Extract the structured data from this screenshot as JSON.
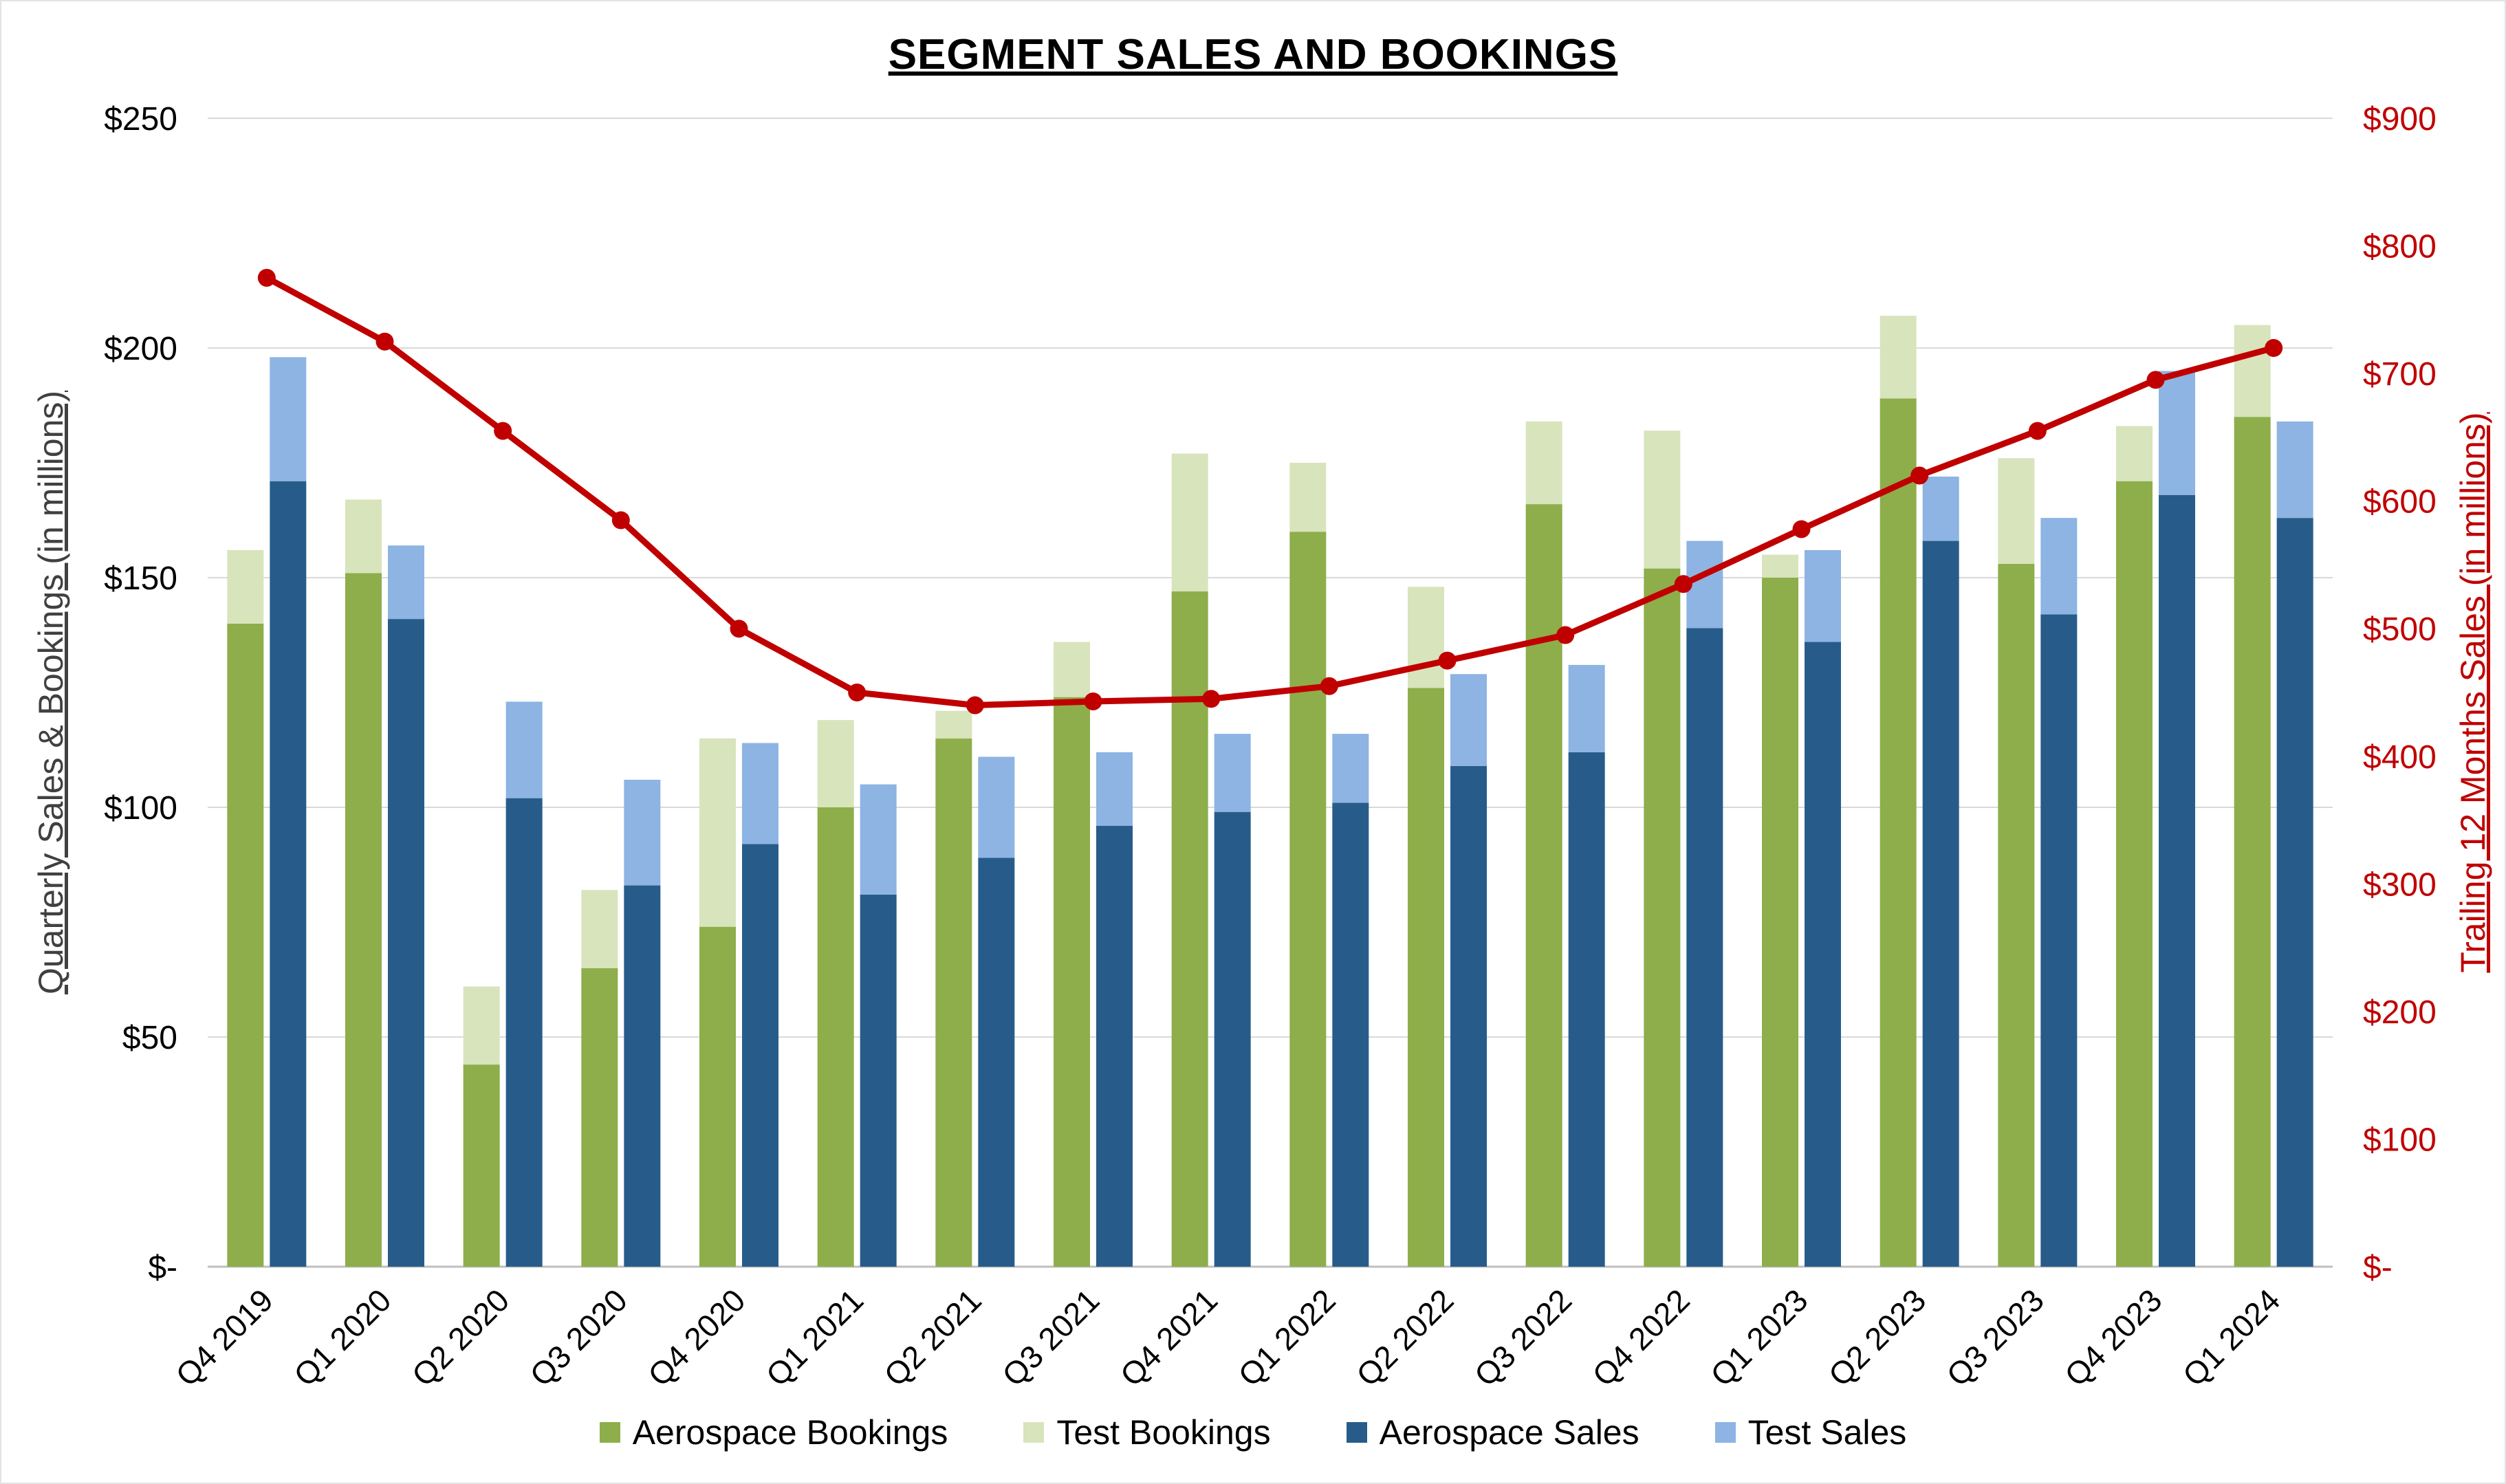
{
  "chart_data": {
    "type": "bar",
    "title": "SEGMENT SALES AND BOOKINGS",
    "categories": [
      "Q4 2019",
      "Q1 2020",
      "Q2 2020",
      "Q3 2020",
      "Q4 2020",
      "Q1 2021",
      "Q2 2021",
      "Q3 2021",
      "Q4 2021",
      "Q1 2022",
      "Q2 2022",
      "Q3 2022",
      "Q4 2022",
      "Q1 2023",
      "Q2 2023",
      "Q3 2023",
      "Q4 2023",
      "Q1 2024"
    ],
    "series": [
      {
        "name": "Aerospace Bookings",
        "type": "bar",
        "stack": "bookings",
        "color": "#8DAE4A",
        "values": [
          140,
          151,
          44,
          65,
          74,
          100,
          115,
          124,
          147,
          160,
          126,
          166,
          152,
          150,
          189,
          153,
          171,
          185
        ]
      },
      {
        "name": "Test Bookings",
        "type": "bar",
        "stack": "bookings",
        "color": "#D8E4BC",
        "values": [
          16,
          16,
          17,
          17,
          41,
          19,
          6,
          12,
          30,
          15,
          22,
          18,
          30,
          5,
          18,
          23,
          12,
          20
        ]
      },
      {
        "name": "Aerospace Sales",
        "type": "bar",
        "stack": "sales",
        "color": "#275C8A",
        "values": [
          171,
          141,
          102,
          83,
          92,
          81,
          89,
          96,
          99,
          101,
          109,
          112,
          139,
          136,
          158,
          142,
          168,
          163
        ]
      },
      {
        "name": "Test Sales",
        "type": "bar",
        "stack": "sales",
        "color": "#8DB4E2",
        "values": [
          27,
          16,
          21,
          23,
          22,
          24,
          22,
          16,
          17,
          15,
          20,
          19,
          19,
          20,
          14,
          21,
          27,
          21
        ]
      },
      {
        "name": "Trailing 12 Months Sales",
        "type": "line",
        "axis": "right",
        "color": "#C00000",
        "values": [
          775,
          725,
          655,
          585,
          500,
          450,
          440,
          443,
          445,
          455,
          475,
          495,
          535,
          578,
          620,
          655,
          695,
          720
        ]
      }
    ],
    "left_axis": {
      "title": "Quarterly Sales & Bookings (in millions)",
      "ticks": [
        "$-",
        "$50",
        "$100",
        "$150",
        "$200",
        "$250"
      ],
      "max": 250,
      "step": 50
    },
    "right_axis": {
      "title": "Trailing 12 Months Sales (in millions)",
      "ticks": [
        "$-",
        "$100",
        "$200",
        "$300",
        "$400",
        "$500",
        "$600",
        "$700",
        "$800",
        "$900"
      ],
      "max": 900,
      "step": 100,
      "color": "#C00000"
    },
    "legend": [
      "Aerospace Bookings",
      "Test Bookings",
      "Aerospace Sales",
      "Test Sales"
    ],
    "grid_color": "#D9D9D9",
    "axis_line_color": "#BFBFBF"
  }
}
